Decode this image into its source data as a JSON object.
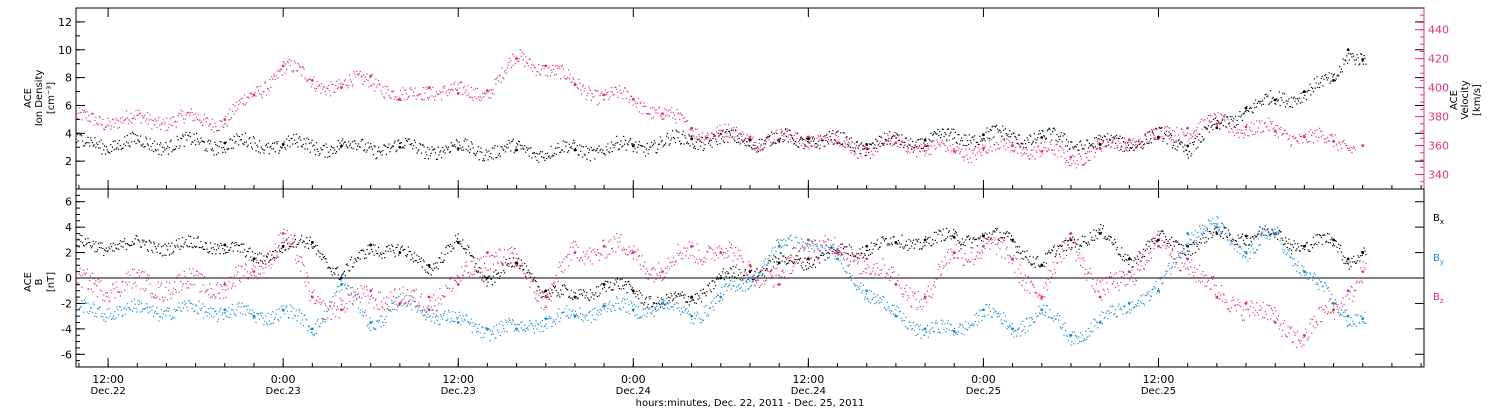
{
  "chart_data": [
    {
      "type": "scatter",
      "panel": "top",
      "left_axis_title": [
        "ACE",
        "Ion Density",
        "[cm⁻³]"
      ],
      "right_axis_title": [
        "ACE",
        "Velocity",
        "[km/s]"
      ],
      "left_ylim": [
        0,
        13
      ],
      "right_ylim": [
        330,
        455
      ],
      "left_ticks": [
        "2",
        "4",
        "6",
        "8",
        "10",
        "12"
      ],
      "right_ticks": [
        "340",
        "360",
        "380",
        "400",
        "420",
        "440"
      ],
      "series": [
        {
          "name": "",
          "axis": "left",
          "color": "#000000",
          "x": [
            -4,
            0,
            4,
            8,
            12,
            16,
            20,
            24,
            28,
            32,
            36,
            40,
            44,
            48,
            52,
            56,
            60,
            62,
            64,
            66,
            68,
            70,
            72,
            73,
            74
          ],
          "y": [
            3.3,
            3.2,
            3.1,
            3.0,
            2.9,
            2.8,
            2.8,
            3.1,
            3.6,
            3.5,
            3.6,
            3.2,
            3.5,
            3.9,
            3.7,
            3.2,
            3.7,
            3.1,
            4.4,
            5.8,
            6.4,
            7.0,
            7.8,
            10.0,
            9.3
          ]
        },
        {
          "name": "",
          "axis": "right",
          "color": "#e8336a",
          "x": [
            -4,
            -2,
            0,
            2,
            4,
            6,
            8,
            10,
            12,
            14,
            16,
            18,
            20,
            22,
            24,
            26,
            28,
            30,
            32,
            34,
            36,
            38,
            40,
            42,
            44,
            46,
            48,
            50,
            52,
            54,
            56,
            58,
            60,
            62,
            64,
            66,
            68,
            70,
            72,
            74
          ],
          "y": [
            378,
            395,
            415,
            405,
            400,
            408,
            392,
            400,
            396,
            398,
            420,
            415,
            402,
            395,
            392,
            382,
            372,
            368,
            366,
            364,
            366,
            362,
            358,
            362,
            360,
            356,
            358,
            360,
            356,
            352,
            358,
            364,
            366,
            372,
            375,
            373,
            370,
            366,
            363,
            360
          ]
        }
      ]
    },
    {
      "type": "scatter",
      "panel": "bottom",
      "left_axis_title": [
        "ACE",
        "B",
        "[nT]"
      ],
      "ylim": [
        -7,
        7
      ],
      "ticks": [
        "-6",
        "-4",
        "-2",
        "0",
        "2",
        "4",
        "6"
      ],
      "xlabel": "hours:minutes, Dec. 22, 2011 - Dec. 25, 2011",
      "x_ticks": [
        {
          "time": "12:00",
          "date": "Dec.22"
        },
        {
          "time": "0:00",
          "date": "Dec.23"
        },
        {
          "time": "12:00",
          "date": "Dec.23"
        },
        {
          "time": "0:00",
          "date": "Dec.24"
        },
        {
          "time": "12:00",
          "date": "Dec.24"
        },
        {
          "time": "0:00",
          "date": "Dec.25"
        },
        {
          "time": "12:00",
          "date": "Dec.25"
        }
      ],
      "x_tick_values": [
        -12,
        0,
        12,
        24,
        36,
        48,
        60
      ],
      "xlim": [
        -14.2,
        78.2
      ],
      "legend": [
        {
          "label": "B",
          "sub": "x",
          "color": "#000000"
        },
        {
          "label": "B",
          "sub": "y",
          "color": "#1a8ce0"
        },
        {
          "label": "B",
          "sub": "z",
          "color": "#e8336a"
        }
      ],
      "series": [
        {
          "name": "Bx",
          "color": "#000000",
          "x": [
            -4,
            -2,
            0,
            2,
            4,
            6,
            8,
            10,
            12,
            14,
            16,
            18,
            20,
            22,
            24,
            26,
            28,
            30,
            32,
            34,
            36,
            38,
            40,
            42,
            44,
            46,
            48,
            50,
            52,
            54,
            56,
            58,
            60,
            62,
            64,
            66,
            68,
            70,
            72,
            73,
            74
          ],
          "y": [
            2.6,
            1.5,
            2.5,
            2.8,
            0.0,
            2.6,
            2.0,
            1.0,
            2.8,
            0.0,
            1.2,
            -1.0,
            -1.5,
            -0.5,
            -1.0,
            -2.0,
            -1.5,
            0.0,
            0.5,
            1.2,
            1.5,
            2.0,
            2.5,
            2.8,
            3.0,
            3.2,
            3.3,
            3.0,
            1.0,
            3.0,
            3.5,
            1.5,
            3.0,
            2.5,
            3.5,
            3.3,
            3.5,
            2.5,
            3.0,
            1.5,
            2.0
          ]
        },
        {
          "name": "By",
          "color": "#1a8ce0",
          "x": [
            -4,
            -2,
            0,
            2,
            4,
            6,
            8,
            10,
            12,
            14,
            16,
            18,
            20,
            22,
            24,
            26,
            28,
            30,
            32,
            34,
            36,
            38,
            40,
            42,
            44,
            46,
            48,
            50,
            52,
            54,
            56,
            58,
            60,
            62,
            64,
            66,
            68,
            70,
            72,
            73,
            74
          ],
          "y": [
            -2.5,
            -3.0,
            -2.5,
            -4.0,
            -0.5,
            -3.5,
            -2.0,
            -2.5,
            -3.5,
            -4.0,
            -4.0,
            -3.2,
            -3.0,
            -2.2,
            -2.5,
            -2.0,
            -3.0,
            -1.5,
            0.0,
            2.5,
            3.0,
            1.5,
            -1.0,
            -3.0,
            -4.0,
            -4.2,
            -2.5,
            -4.0,
            -2.5,
            -4.5,
            -3.5,
            -2.0,
            -1.0,
            3.5,
            4.0,
            2.0,
            3.5,
            0.5,
            -2.0,
            -3.0,
            -3.2
          ]
        },
        {
          "name": "Bz",
          "color": "#e8336a",
          "x": [
            -4,
            -2,
            0,
            2,
            4,
            6,
            8,
            10,
            12,
            14,
            16,
            18,
            20,
            22,
            24,
            26,
            28,
            30,
            32,
            34,
            36,
            38,
            40,
            42,
            44,
            46,
            48,
            50,
            52,
            54,
            56,
            58,
            60,
            62,
            64,
            66,
            68,
            70,
            72,
            73,
            74
          ],
          "y": [
            -0.5,
            0.5,
            3.5,
            -1.5,
            -2.5,
            -1.0,
            -2.0,
            -1.5,
            -0.5,
            2.0,
            1.0,
            -1.5,
            2.0,
            2.5,
            2.0,
            0.5,
            2.5,
            2.0,
            1.0,
            -0.5,
            3.0,
            2.0,
            1.5,
            -0.5,
            -1.5,
            2.0,
            2.5,
            1.5,
            -1.5,
            3.5,
            -1.5,
            0.5,
            2.5,
            1.5,
            -1.5,
            -2.0,
            -3.5,
            -4.5,
            -2.5,
            -1.0,
            0.5
          ]
        }
      ]
    }
  ]
}
